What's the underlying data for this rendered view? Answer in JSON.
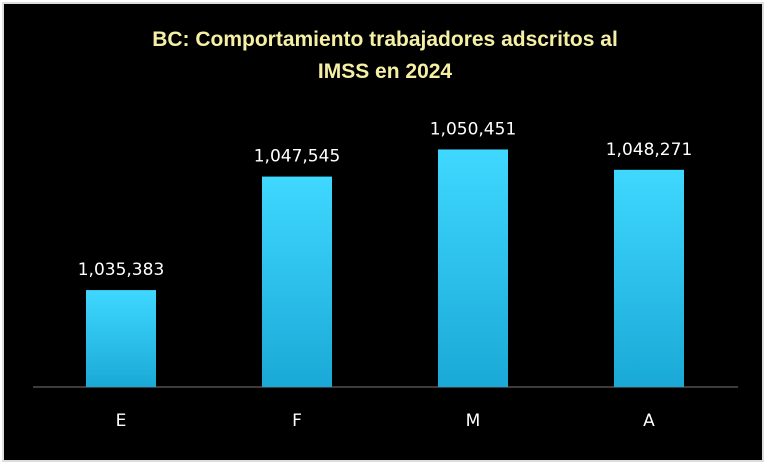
{
  "chart_data": {
    "type": "bar",
    "title": "BC: Comportamiento trabajadores adscritos al IMSS en 2024",
    "categories": [
      "E",
      "F",
      "M",
      "A"
    ],
    "values": [
      1035383,
      1047545,
      1050451,
      1048271
    ],
    "value_labels": [
      "1,035,383",
      "1,047,545",
      "1,050,451",
      "1,048,271"
    ],
    "color": "#2cc6f2",
    "ylim": [
      1025000,
      1055000
    ]
  }
}
